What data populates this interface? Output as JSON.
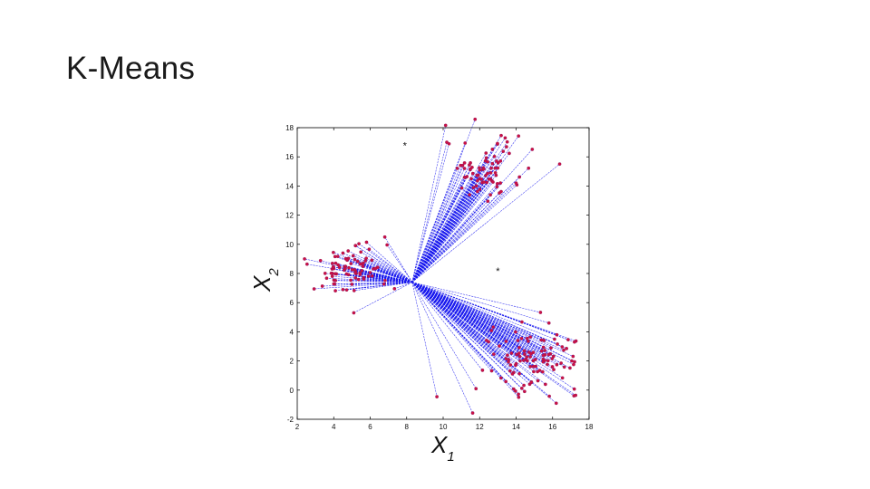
{
  "slide": {
    "title": "K-Means"
  },
  "chart_data": {
    "type": "scatter",
    "title": "",
    "xlabel": "X",
    "xlabel_sub": "1",
    "ylabel": "X",
    "ylabel_sub": "2",
    "xlim": [
      2,
      18
    ],
    "ylim": [
      -2,
      18
    ],
    "xticks": [
      "2",
      "4",
      "6",
      "8",
      "10",
      "12",
      "14",
      "16",
      "18"
    ],
    "yticks": [
      "-2",
      "0",
      "2",
      "4",
      "6",
      "8",
      "10",
      "12",
      "14",
      "16",
      "18"
    ],
    "grid": false,
    "legend": "none",
    "hub": {
      "x": 8.3,
      "y": 7.4
    },
    "centroid_marker": "*",
    "centroids": [
      {
        "x": 7.9,
        "y": 16.8
      },
      {
        "x": 13.0,
        "y": 8.2
      }
    ],
    "point_color": "#cc1144",
    "line_color": "#1a1aee",
    "clusters": [
      {
        "center": {
          "x": 12.3,
          "y": 15.1
        },
        "spread": {
          "x": 1.05,
          "y": 1.05
        },
        "count": 80,
        "extra_points": [
          {
            "x": 10.2,
            "y": 17.0
          },
          {
            "x": 13.4,
            "y": 17.3
          },
          {
            "x": 14.0,
            "y": 14.2
          }
        ]
      },
      {
        "center": {
          "x": 4.9,
          "y": 8.3
        },
        "spread": {
          "x": 1.05,
          "y": 0.9
        },
        "count": 85,
        "extra_points": [
          {
            "x": 6.8,
            "y": 10.5
          },
          {
            "x": 2.4,
            "y": 9.0
          },
          {
            "x": 5.1,
            "y": 5.3
          }
        ]
      },
      {
        "center": {
          "x": 15.0,
          "y": 2.1
        },
        "spread": {
          "x": 1.25,
          "y": 1.05
        },
        "count": 110,
        "extra_points": [
          {
            "x": 11.8,
            "y": 0.1
          },
          {
            "x": 16.2,
            "y": -0.9
          },
          {
            "x": 17.2,
            "y": 3.3
          },
          {
            "x": 15.8,
            "y": 4.6
          }
        ]
      }
    ],
    "random_seed": 7
  }
}
